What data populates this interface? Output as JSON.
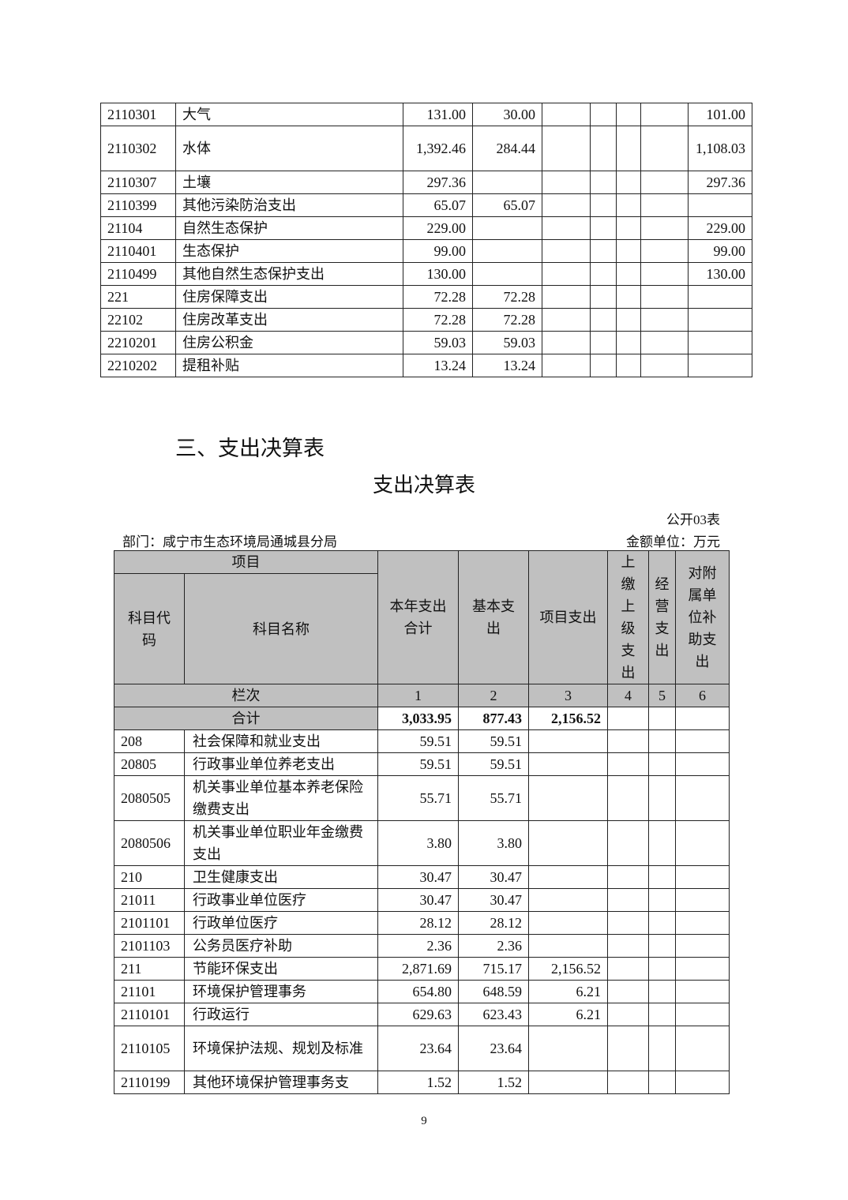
{
  "top_table": {
    "rows": [
      [
        "2110301",
        "大气",
        "131.00",
        "30.00",
        "",
        "",
        "",
        "",
        "101.00"
      ],
      [
        "2110302",
        "水体",
        "1,392.46",
        "284.44",
        "",
        "",
        "",
        "",
        "1,108.03"
      ],
      [
        "2110307",
        "土壤",
        "297.36",
        "",
        "",
        "",
        "",
        "",
        "297.36"
      ],
      [
        "2110399",
        "其他污染防治支出",
        "65.07",
        "65.07",
        "",
        "",
        "",
        "",
        ""
      ],
      [
        "21104",
        "自然生态保护",
        "229.00",
        "",
        "",
        "",
        "",
        "",
        "229.00"
      ],
      [
        "2110401",
        "生态保护",
        "99.00",
        "",
        "",
        "",
        "",
        "",
        "99.00"
      ],
      [
        "2110499",
        "其他自然生态保护支出",
        "130.00",
        "",
        "",
        "",
        "",
        "",
        "130.00"
      ],
      [
        "221",
        "住房保障支出",
        "72.28",
        "72.28",
        "",
        "",
        "",
        "",
        ""
      ],
      [
        "22102",
        "住房改革支出",
        "72.28",
        "72.28",
        "",
        "",
        "",
        "",
        ""
      ],
      [
        "2210201",
        "住房公积金",
        "59.03",
        "59.03",
        "",
        "",
        "",
        "",
        ""
      ],
      [
        "2210202",
        "提租补贴",
        "13.24",
        "13.24",
        "",
        "",
        "",
        "",
        ""
      ]
    ]
  },
  "section_heading": "三、支出决算表",
  "table_title": "支出决算表",
  "table_code": "公开03表",
  "department": "部门：咸宁市生态环境局通城县分局",
  "unit": "金额单位：万元",
  "expense_table": {
    "header": {
      "item": "项目",
      "code": "科目代码",
      "name": "科目名称",
      "cols": [
        "本年支出合计",
        "基本支出",
        "项目支出",
        "上缴上级支出",
        "经营支出",
        "对附属单位补助支出"
      ],
      "row_index_label": "栏次",
      "col_numbers": [
        "1",
        "2",
        "3",
        "4",
        "5",
        "6"
      ],
      "total_label": "合计",
      "totals": [
        "3,033.95",
        "877.43",
        "2,156.52",
        "",
        "",
        ""
      ]
    },
    "rows": [
      [
        "208",
        "社会保障和就业支出",
        "59.51",
        "59.51",
        "",
        "",
        "",
        ""
      ],
      [
        "20805",
        "行政事业单位养老支出",
        "59.51",
        "59.51",
        "",
        "",
        "",
        ""
      ],
      [
        "2080505",
        "机关事业单位基本养老保险缴费支出",
        "55.71",
        "55.71",
        "",
        "",
        "",
        ""
      ],
      [
        "2080506",
        "机关事业单位职业年金缴费支出",
        "3.80",
        "3.80",
        "",
        "",
        "",
        ""
      ],
      [
        "210",
        "卫生健康支出",
        "30.47",
        "30.47",
        "",
        "",
        "",
        ""
      ],
      [
        "21011",
        "行政事业单位医疗",
        "30.47",
        "30.47",
        "",
        "",
        "",
        ""
      ],
      [
        "2101101",
        "行政单位医疗",
        "28.12",
        "28.12",
        "",
        "",
        "",
        ""
      ],
      [
        "2101103",
        "公务员医疗补助",
        "2.36",
        "2.36",
        "",
        "",
        "",
        ""
      ],
      [
        "211",
        "节能环保支出",
        "2,871.69",
        "715.17",
        "2,156.52",
        "",
        "",
        ""
      ],
      [
        "21101",
        "环境保护管理事务",
        "654.80",
        "648.59",
        "6.21",
        "",
        "",
        ""
      ],
      [
        "2110101",
        "行政运行",
        "629.63",
        "623.43",
        "6.21",
        "",
        "",
        ""
      ],
      [
        "2110105",
        "环境保护法规、规划及标准",
        "23.64",
        "23.64",
        "",
        "",
        "",
        ""
      ],
      [
        "2110199",
        "其他环境保护管理事务支",
        "1.52",
        "1.52",
        "",
        "",
        "",
        ""
      ]
    ]
  },
  "page_number": "9"
}
